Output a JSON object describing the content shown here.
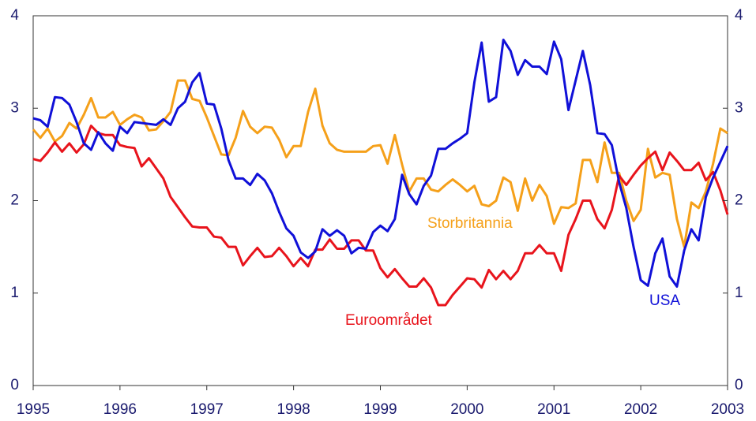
{
  "chart_data": {
    "type": "line",
    "x": [
      1995,
      1995.083,
      1995.167,
      1995.25,
      1995.333,
      1995.417,
      1995.5,
      1995.583,
      1995.667,
      1995.75,
      1995.833,
      1995.917,
      1996,
      1996.083,
      1996.167,
      1996.25,
      1996.333,
      1996.417,
      1996.5,
      1996.583,
      1996.667,
      1996.75,
      1996.833,
      1996.917,
      1997,
      1997.083,
      1997.167,
      1997.25,
      1997.333,
      1997.417,
      1997.5,
      1997.583,
      1997.667,
      1997.75,
      1997.833,
      1997.917,
      1998,
      1998.083,
      1998.167,
      1998.25,
      1998.333,
      1998.417,
      1998.5,
      1998.583,
      1998.667,
      1998.75,
      1998.833,
      1998.917,
      1999,
      1999.083,
      1999.167,
      1999.25,
      1999.333,
      1999.417,
      1999.5,
      1999.583,
      1999.667,
      1999.75,
      1999.833,
      1999.917,
      2000,
      2000.083,
      2000.167,
      2000.25,
      2000.333,
      2000.417,
      2000.5,
      2000.583,
      2000.667,
      2000.75,
      2000.833,
      2000.917,
      2001,
      2001.083,
      2001.167,
      2001.25,
      2001.333,
      2001.417,
      2001.5,
      2001.583,
      2001.667,
      2001.75,
      2001.833,
      2001.917,
      2002,
      2002.083,
      2002.167,
      2002.25,
      2002.333,
      2002.417,
      2002.5,
      2002.583,
      2002.667,
      2002.75,
      2002.833,
      2002.917,
      2003
    ],
    "series": [
      {
        "name": "Storbritannia",
        "color": "#f5a01a",
        "values": [
          2.77,
          2.68,
          2.78,
          2.64,
          2.7,
          2.84,
          2.78,
          2.93,
          3.11,
          2.9,
          2.9,
          2.96,
          2.82,
          2.88,
          2.93,
          2.9,
          2.76,
          2.77,
          2.86,
          2.96,
          3.3,
          3.3,
          3.1,
          3.08,
          2.9,
          2.7,
          2.5,
          2.49,
          2.68,
          2.97,
          2.8,
          2.73,
          2.8,
          2.79,
          2.66,
          2.47,
          2.59,
          2.59,
          2.96,
          3.21,
          2.81,
          2.62,
          2.55,
          2.53,
          2.53,
          2.53,
          2.53,
          2.59,
          2.6,
          2.4,
          2.71,
          2.39,
          2.1,
          2.24,
          2.24,
          2.12,
          2.1,
          2.17,
          2.23,
          2.17,
          2.1,
          2.16,
          1.96,
          1.94,
          2.0,
          2.25,
          2.2,
          1.89,
          2.24,
          2.0,
          2.17,
          2.05,
          1.75,
          1.93,
          1.92,
          1.97,
          2.44,
          2.44,
          2.2,
          2.63,
          2.3,
          2.3,
          2.0,
          1.78,
          1.9,
          2.56,
          2.25,
          2.3,
          2.28,
          1.8,
          1.5,
          1.98,
          1.92,
          2.1,
          2.4,
          2.78,
          2.73
        ]
      },
      {
        "name": "Euroområdet",
        "color": "#e8141c",
        "values": [
          2.45,
          2.43,
          2.52,
          2.63,
          2.53,
          2.62,
          2.52,
          2.61,
          2.81,
          2.73,
          2.71,
          2.71,
          2.6,
          2.58,
          2.57,
          2.37,
          2.46,
          2.35,
          2.24,
          2.04,
          1.93,
          1.82,
          1.72,
          1.71,
          1.71,
          1.61,
          1.6,
          1.5,
          1.5,
          1.3,
          1.4,
          1.49,
          1.39,
          1.4,
          1.49,
          1.4,
          1.29,
          1.38,
          1.29,
          1.47,
          1.47,
          1.58,
          1.48,
          1.48,
          1.57,
          1.57,
          1.46,
          1.46,
          1.27,
          1.17,
          1.26,
          1.16,
          1.07,
          1.07,
          1.16,
          1.06,
          0.87,
          0.87,
          0.98,
          1.07,
          1.16,
          1.15,
          1.06,
          1.25,
          1.15,
          1.24,
          1.15,
          1.24,
          1.43,
          1.43,
          1.52,
          1.43,
          1.43,
          1.24,
          1.63,
          1.8,
          2.0,
          2.0,
          1.8,
          1.7,
          1.9,
          2.27,
          2.17,
          2.28,
          2.38,
          2.46,
          2.53,
          2.33,
          2.52,
          2.43,
          2.33,
          2.33,
          2.41,
          2.22,
          2.31,
          2.11,
          1.85
        ]
      },
      {
        "name": "USA",
        "color": "#1010d8",
        "values": [
          2.89,
          2.87,
          2.8,
          3.12,
          3.11,
          3.04,
          2.85,
          2.62,
          2.55,
          2.74,
          2.62,
          2.54,
          2.8,
          2.73,
          2.85,
          2.84,
          2.83,
          2.82,
          2.88,
          2.82,
          3.0,
          3.07,
          3.28,
          3.38,
          3.05,
          3.04,
          2.78,
          2.44,
          2.24,
          2.24,
          2.17,
          2.29,
          2.22,
          2.08,
          1.88,
          1.7,
          1.62,
          1.44,
          1.38,
          1.45,
          1.69,
          1.62,
          1.68,
          1.62,
          1.43,
          1.49,
          1.48,
          1.66,
          1.73,
          1.67,
          1.8,
          2.28,
          2.07,
          1.96,
          2.16,
          2.27,
          2.56,
          2.56,
          2.62,
          2.67,
          2.73,
          3.28,
          3.71,
          3.07,
          3.12,
          3.74,
          3.62,
          3.36,
          3.52,
          3.45,
          3.45,
          3.37,
          3.72,
          3.53,
          2.98,
          3.3,
          3.62,
          3.25,
          2.73,
          2.72,
          2.6,
          2.2,
          1.92,
          1.5,
          1.14,
          1.08,
          1.43,
          1.59,
          1.18,
          1.07,
          1.46,
          1.69,
          1.57,
          2.04,
          2.25,
          2.42,
          2.59
        ]
      }
    ],
    "xlim": [
      1995,
      2003
    ],
    "xticks": [
      1995,
      1996,
      1997,
      1998,
      1999,
      2000,
      2001,
      2002,
      2003
    ],
    "ylim": [
      0,
      4
    ],
    "yticks": [
      0,
      1,
      2,
      3,
      4
    ],
    "y2lim": [
      0,
      4
    ],
    "y2ticks": [
      0,
      1,
      2,
      3,
      4
    ],
    "grid": false,
    "legend": false
  }
}
